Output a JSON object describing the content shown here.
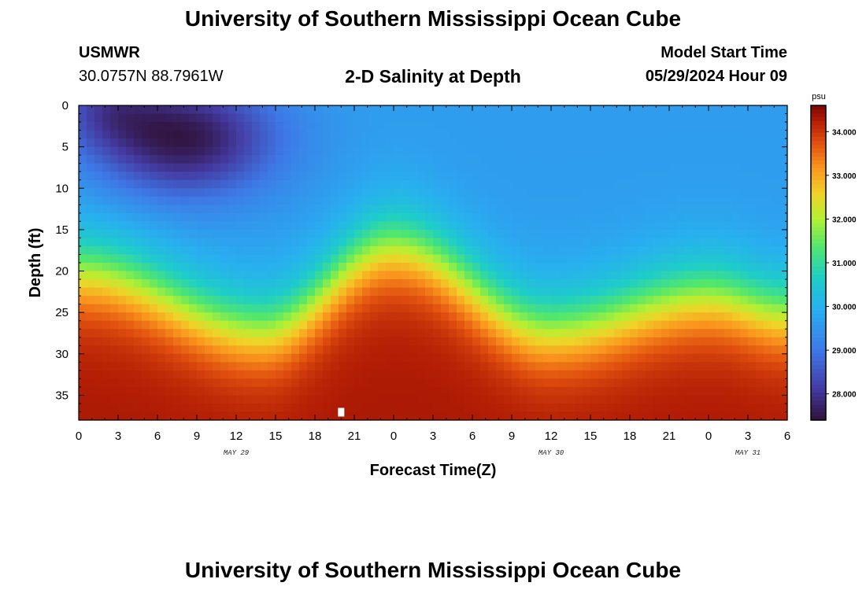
{
  "header": {
    "title": "University of Southern Mississippi Ocean Cube",
    "station_id": "USMWR",
    "coordinates": "30.0757N  88.7961W",
    "plot_title": "2-D Salinity at Depth",
    "model_start_label": "Model Start Time",
    "model_start_value": "05/29/2024 Hour 09"
  },
  "footer": {
    "title": "University of Southern Mississippi Ocean Cube"
  },
  "colors": {
    "background": "#ffffff",
    "text": "#000000"
  },
  "chart_data": {
    "type": "heatmap",
    "title": "2-D Salinity at Depth",
    "xlabel": "Forecast Time(Z)",
    "ylabel": "Depth (ft)",
    "x_tick_labels": [
      "0",
      "3",
      "6",
      "9",
      "12",
      "15",
      "18",
      "21",
      "0",
      "3",
      "6",
      "9",
      "12",
      "15",
      "18",
      "21",
      "0",
      "3",
      "6"
    ],
    "x_range_hours": [
      0,
      54
    ],
    "date_labels": [
      {
        "text": "MAY 29",
        "hour": 12
      },
      {
        "text": "MAY 30",
        "hour": 36
      },
      {
        "text": "MAY 31",
        "hour": 51
      }
    ],
    "y_tick_labels": [
      "0",
      "5",
      "10",
      "15",
      "20",
      "25",
      "30",
      "35"
    ],
    "y_range_ft": [
      0,
      38
    ],
    "colorbar": {
      "unit": "psu",
      "range": [
        27.4,
        34.6
      ],
      "tick_labels": [
        "28.000",
        "29.000",
        "30.000",
        "31.000",
        "32.000",
        "33.000",
        "34.000"
      ],
      "tick_values": [
        28,
        29,
        30,
        31,
        32,
        33,
        34
      ]
    },
    "field_description": {
      "surface_salinity_psu": 29.6,
      "bottom_salinity_psu": 34.3,
      "fresh_lens_center_hour": 8,
      "fresh_lens_center_depth_ft": 4,
      "fresh_lens_min_psu": 27.5,
      "halocline_depth_ft_at_hours": [
        {
          "hour": 0,
          "depth": 20
        },
        {
          "hour": 14,
          "depth": 27
        },
        {
          "hour": 24,
          "depth": 17
        },
        {
          "hour": 36,
          "depth": 27
        },
        {
          "hour": 48,
          "depth": 23
        },
        {
          "hour": 54,
          "depth": 25
        }
      ]
    },
    "marker": {
      "hour": 20,
      "depth_ft": 37
    }
  }
}
